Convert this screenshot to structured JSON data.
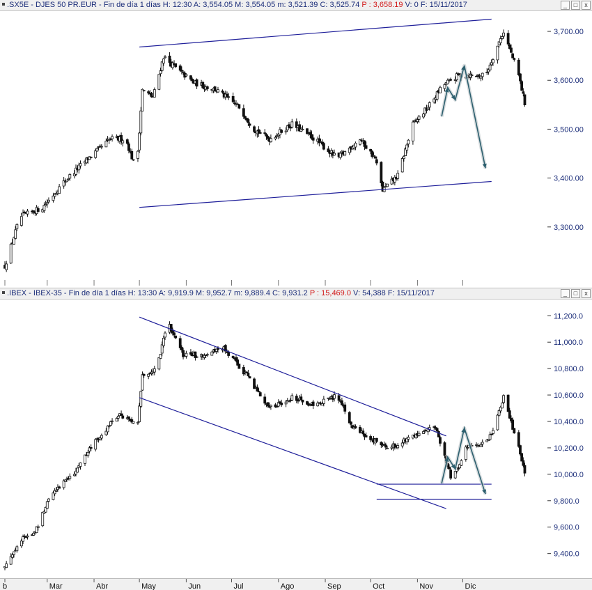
{
  "colors": {
    "candle": "#111111",
    "trend": "#1f1f9a",
    "arrow": "#2c5f6e",
    "label": "#1c2e7a",
    "price_red": "#d21a1a"
  },
  "top_header": {
    "symbol": ".SX5E - DJES 50 PR.EUR - Fin de día 1 días",
    "h": "H: 12:30",
    "a": "A: 3,554.05",
    "m": "M: 3,554.05",
    "mn": "m: 3,521.39",
    "c": "C: 3,525.74",
    "p": "P : 3,658.19",
    "v": "V: 0",
    "f": "F: 15/11/2017"
  },
  "bottom_header": {
    "symbol": ".IBEX - IBEX-35 - Fin de día 1 días",
    "h": "H: 13:30",
    "a": "A: 9,919.9",
    "m": "M: 9,952.7",
    "mn": "m: 9,889.4",
    "c": "C: 9,931.2",
    "p": "P : 15,469.0",
    "v": "V: 54,388",
    "f": "F: 15/11/2017"
  },
  "window_buttons": {
    "minimize": "_",
    "maximize": "□",
    "close": "x"
  },
  "months": [
    "b",
    "Mar",
    "Abr",
    "May",
    "Jun",
    "Jul",
    "Ago",
    "Sep",
    "Oct",
    "Nov",
    "Dic"
  ],
  "chart_data": [
    {
      "type": "candlestick",
      "title": ".SX5E - DJES 50 PR.EUR",
      "ylim": [
        3200,
        3730
      ],
      "yticks": [
        "3,300.00",
        "3,400.00",
        "3,500.00",
        "3,600.00",
        "3,700.00"
      ],
      "ytick_values": [
        3300,
        3400,
        3500,
        3600,
        3700
      ],
      "x_ticks": [
        "b",
        "Mar",
        "Abr",
        "May",
        "Jun",
        "Jul",
        "Ago",
        "Sep",
        "Oct",
        "Nov",
        "Dic"
      ],
      "series": [
        {
          "anchors": [
            [
              0,
              3220
            ],
            [
              10,
              3320
            ],
            [
              25,
              3340
            ],
            [
              40,
              3395
            ],
            [
              55,
              3440
            ],
            [
              70,
              3480
            ],
            [
              80,
              3480
            ],
            [
              87,
              3415
            ],
            [
              91,
              3580
            ],
            [
              98,
              3565
            ],
            [
              105,
              3648
            ],
            [
              115,
              3620
            ],
            [
              125,
              3595
            ],
            [
              140,
              3580
            ],
            [
              155,
              3545
            ],
            [
              165,
              3500
            ],
            [
              175,
              3480
            ],
            [
              190,
              3510
            ],
            [
              205,
              3480
            ],
            [
              220,
              3440
            ],
            [
              235,
              3480
            ],
            [
              245,
              3440
            ],
            [
              250,
              3375
            ],
            [
              260,
              3405
            ],
            [
              270,
              3510
            ],
            [
              280,
              3545
            ],
            [
              290,
              3590
            ],
            [
              300,
              3610
            ],
            [
              318,
              3610
            ],
            [
              330,
              3700
            ],
            [
              340,
              3610
            ],
            [
              346,
              3526
            ]
          ]
        }
      ],
      "trendlines": [
        {
          "from": [
            "2017-05-01",
            3668
          ],
          "to": [
            "2017-12-20",
            3725
          ]
        },
        {
          "from": [
            "2017-05-01",
            3340
          ],
          "to": [
            "2017-12-20",
            3393
          ]
        }
      ],
      "projection": [
        3526,
        3585,
        3560,
        3630,
        3420
      ]
    },
    {
      "type": "candlestick",
      "title": ".IBEX - IBEX-35",
      "ylim": [
        9240,
        11270
      ],
      "yticks": [
        "9,400.0",
        "9,600.0",
        "9,800.0",
        "10,000.0",
        "10,200.0",
        "10,400.0",
        "10,600.0",
        "10,800.0",
        "11,000.0",
        "11,200.0"
      ],
      "ytick_values": [
        9400,
        9600,
        9800,
        10000,
        10200,
        10400,
        10600,
        10800,
        11000,
        11200
      ],
      "x_ticks": [
        "b",
        "Mar",
        "Abr",
        "May",
        "Jun",
        "Jul",
        "Ago",
        "Sep",
        "Oct",
        "Nov",
        "Dic"
      ],
      "series": [
        {
          "anchors": [
            [
              0,
              9300
            ],
            [
              10,
              9500
            ],
            [
              20,
              9560
            ],
            [
              30,
              9850
            ],
            [
              45,
              10000
            ],
            [
              60,
              10250
            ],
            [
              75,
              10450
            ],
            [
              88,
              10380
            ],
            [
              91,
              10750
            ],
            [
              100,
              10790
            ],
            [
              108,
              11150
            ],
            [
              118,
              10900
            ],
            [
              130,
              10900
            ],
            [
              145,
              10950
            ],
            [
              160,
              10750
            ],
            [
              175,
              10500
            ],
            [
              190,
              10580
            ],
            [
              205,
              10520
            ],
            [
              220,
              10600
            ],
            [
              230,
              10350
            ],
            [
              245,
              10250
            ],
            [
              255,
              10200
            ],
            [
              270,
              10300
            ],
            [
              285,
              10350
            ],
            [
              292,
              10100
            ],
            [
              296,
              9950
            ],
            [
              305,
              10200
            ],
            [
              320,
              10250
            ],
            [
              330,
              10580
            ],
            [
              340,
              10200
            ],
            [
              346,
              9931
            ]
          ]
        }
      ],
      "trendlines": [
        {
          "from": [
            "2017-05-01",
            11190
          ],
          "to": [
            "2017-11-20",
            10290
          ]
        },
        {
          "from": [
            "2017-05-01",
            10580
          ],
          "to": [
            "2017-11-20",
            9740
          ]
        }
      ],
      "support_lines": [
        9925,
        9810
      ],
      "projection": [
        9931,
        10130,
        10040,
        10350,
        9850
      ]
    }
  ]
}
